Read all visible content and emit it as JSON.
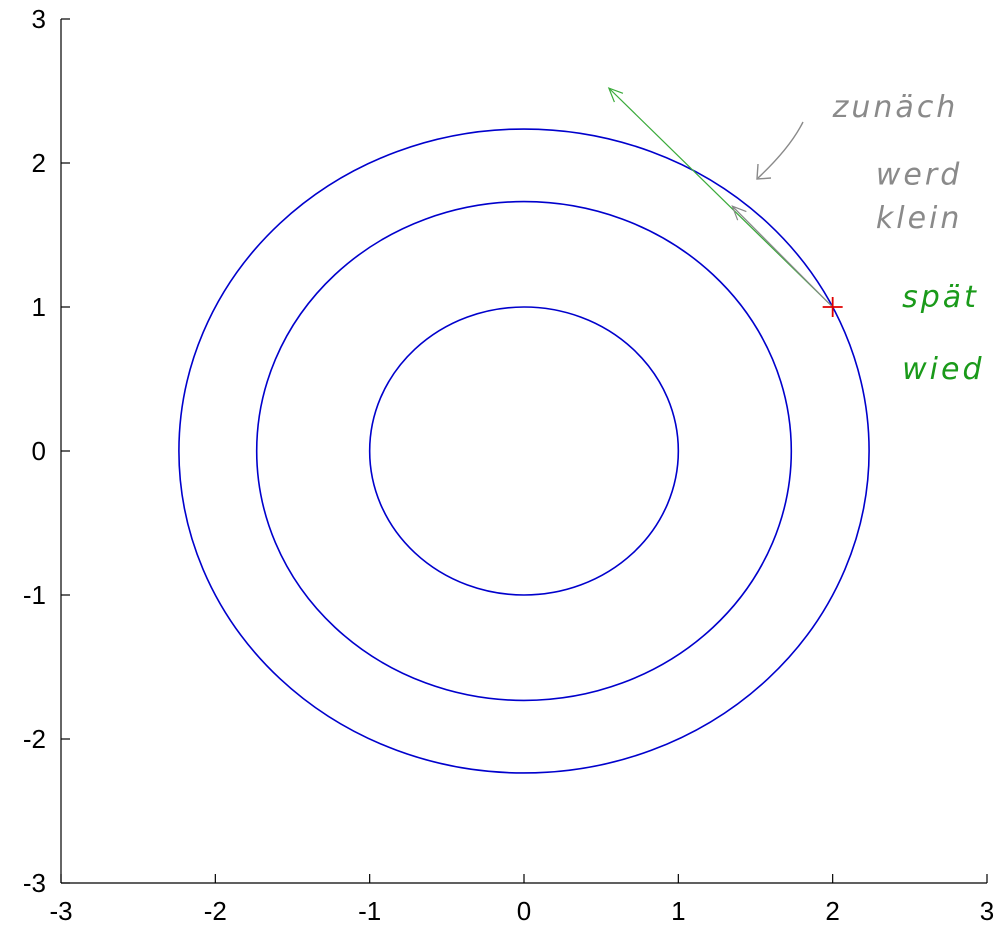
{
  "chart_data": {
    "type": "contour",
    "title": "",
    "xlabel": "",
    "ylabel": "",
    "xlim": [
      -3,
      3
    ],
    "ylim": [
      -3,
      3
    ],
    "grid": false,
    "x_ticks": [
      "-3",
      "-2",
      "-1",
      "0",
      "1",
      "2",
      "3"
    ],
    "y_ticks": [
      "3",
      "2",
      "1",
      "0",
      "-1",
      "-2",
      "-3"
    ],
    "contour_color": "#0000cc",
    "contours": [
      {
        "center": [
          0,
          0
        ],
        "radius": 1.0
      },
      {
        "center": [
          0,
          0
        ],
        "radius": 1.732
      },
      {
        "center": [
          0,
          0
        ],
        "radius": 2.236
      }
    ],
    "marker": {
      "x": 2,
      "y": 1,
      "color": "#e00000"
    },
    "vectors": [
      {
        "from": [
          2,
          1
        ],
        "to": [
          0.55,
          2.52
        ],
        "color": "#3aaa3a"
      },
      {
        "from": [
          2,
          1
        ],
        "to": [
          1.35,
          1.7
        ],
        "color": "#888888"
      }
    ],
    "annotations": [
      {
        "text": "zunäch",
        "x": 2.0,
        "y": 2.32,
        "color": "#8a8a8a"
      },
      {
        "text": "werd",
        "x": 2.28,
        "y": 1.85,
        "color": "#8a8a8a"
      },
      {
        "text": "klein",
        "x": 2.28,
        "y": 1.55,
        "color": "#8a8a8a"
      },
      {
        "text": "spät",
        "x": 2.45,
        "y": 1.0,
        "color": "#1a9a1a"
      },
      {
        "text": "wied",
        "x": 2.45,
        "y": 0.5,
        "color": "#1a9a1a"
      }
    ]
  }
}
